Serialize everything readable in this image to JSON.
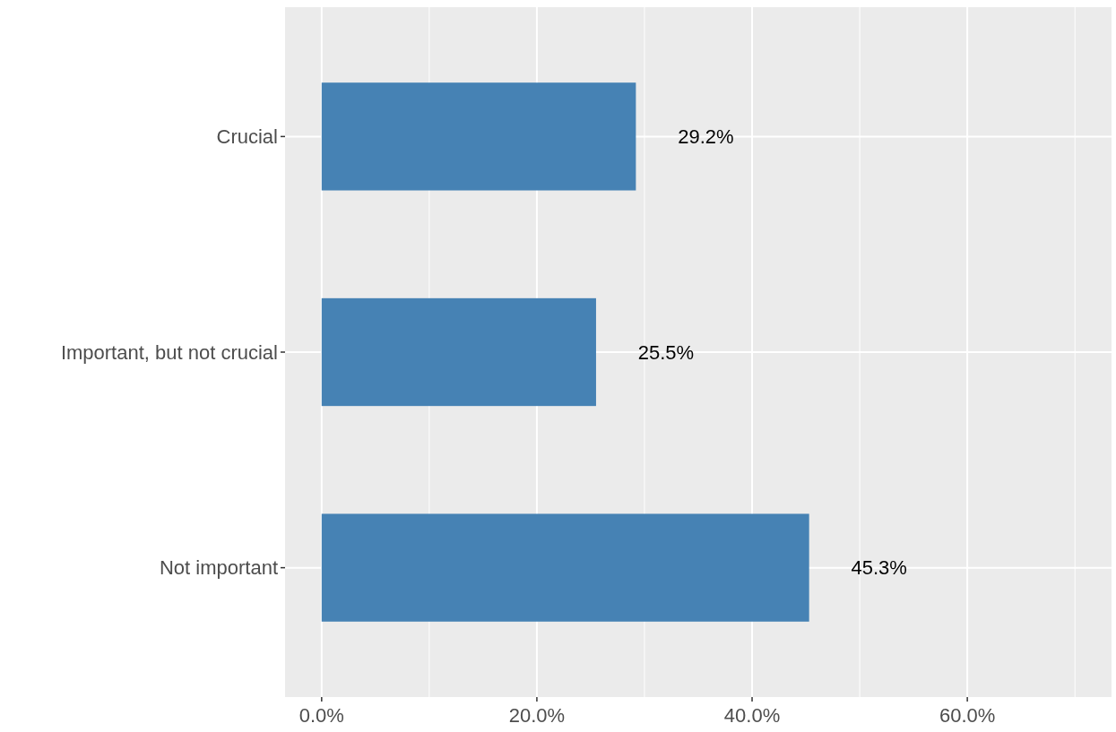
{
  "chart_data": {
    "type": "bar",
    "orientation": "horizontal",
    "categories": [
      "Crucial",
      "Important, but not crucial",
      "Not important"
    ],
    "values": [
      29.2,
      25.5,
      45.3
    ],
    "value_labels": [
      "29.2%",
      "25.5%",
      "45.3%"
    ],
    "color": "#4682b4",
    "xlim": [
      -3.4,
      73.4
    ],
    "xticks": [
      {
        "value": 0,
        "label": "0.0%"
      },
      {
        "value": 10,
        "label": null
      },
      {
        "value": 20,
        "label": "20.0%"
      },
      {
        "value": 30,
        "label": null
      },
      {
        "value": 40,
        "label": "40.0%"
      },
      {
        "value": 50,
        "label": null
      },
      {
        "value": 60,
        "label": "60.0%"
      },
      {
        "value": 70,
        "label": null
      }
    ],
    "grid": true
  }
}
